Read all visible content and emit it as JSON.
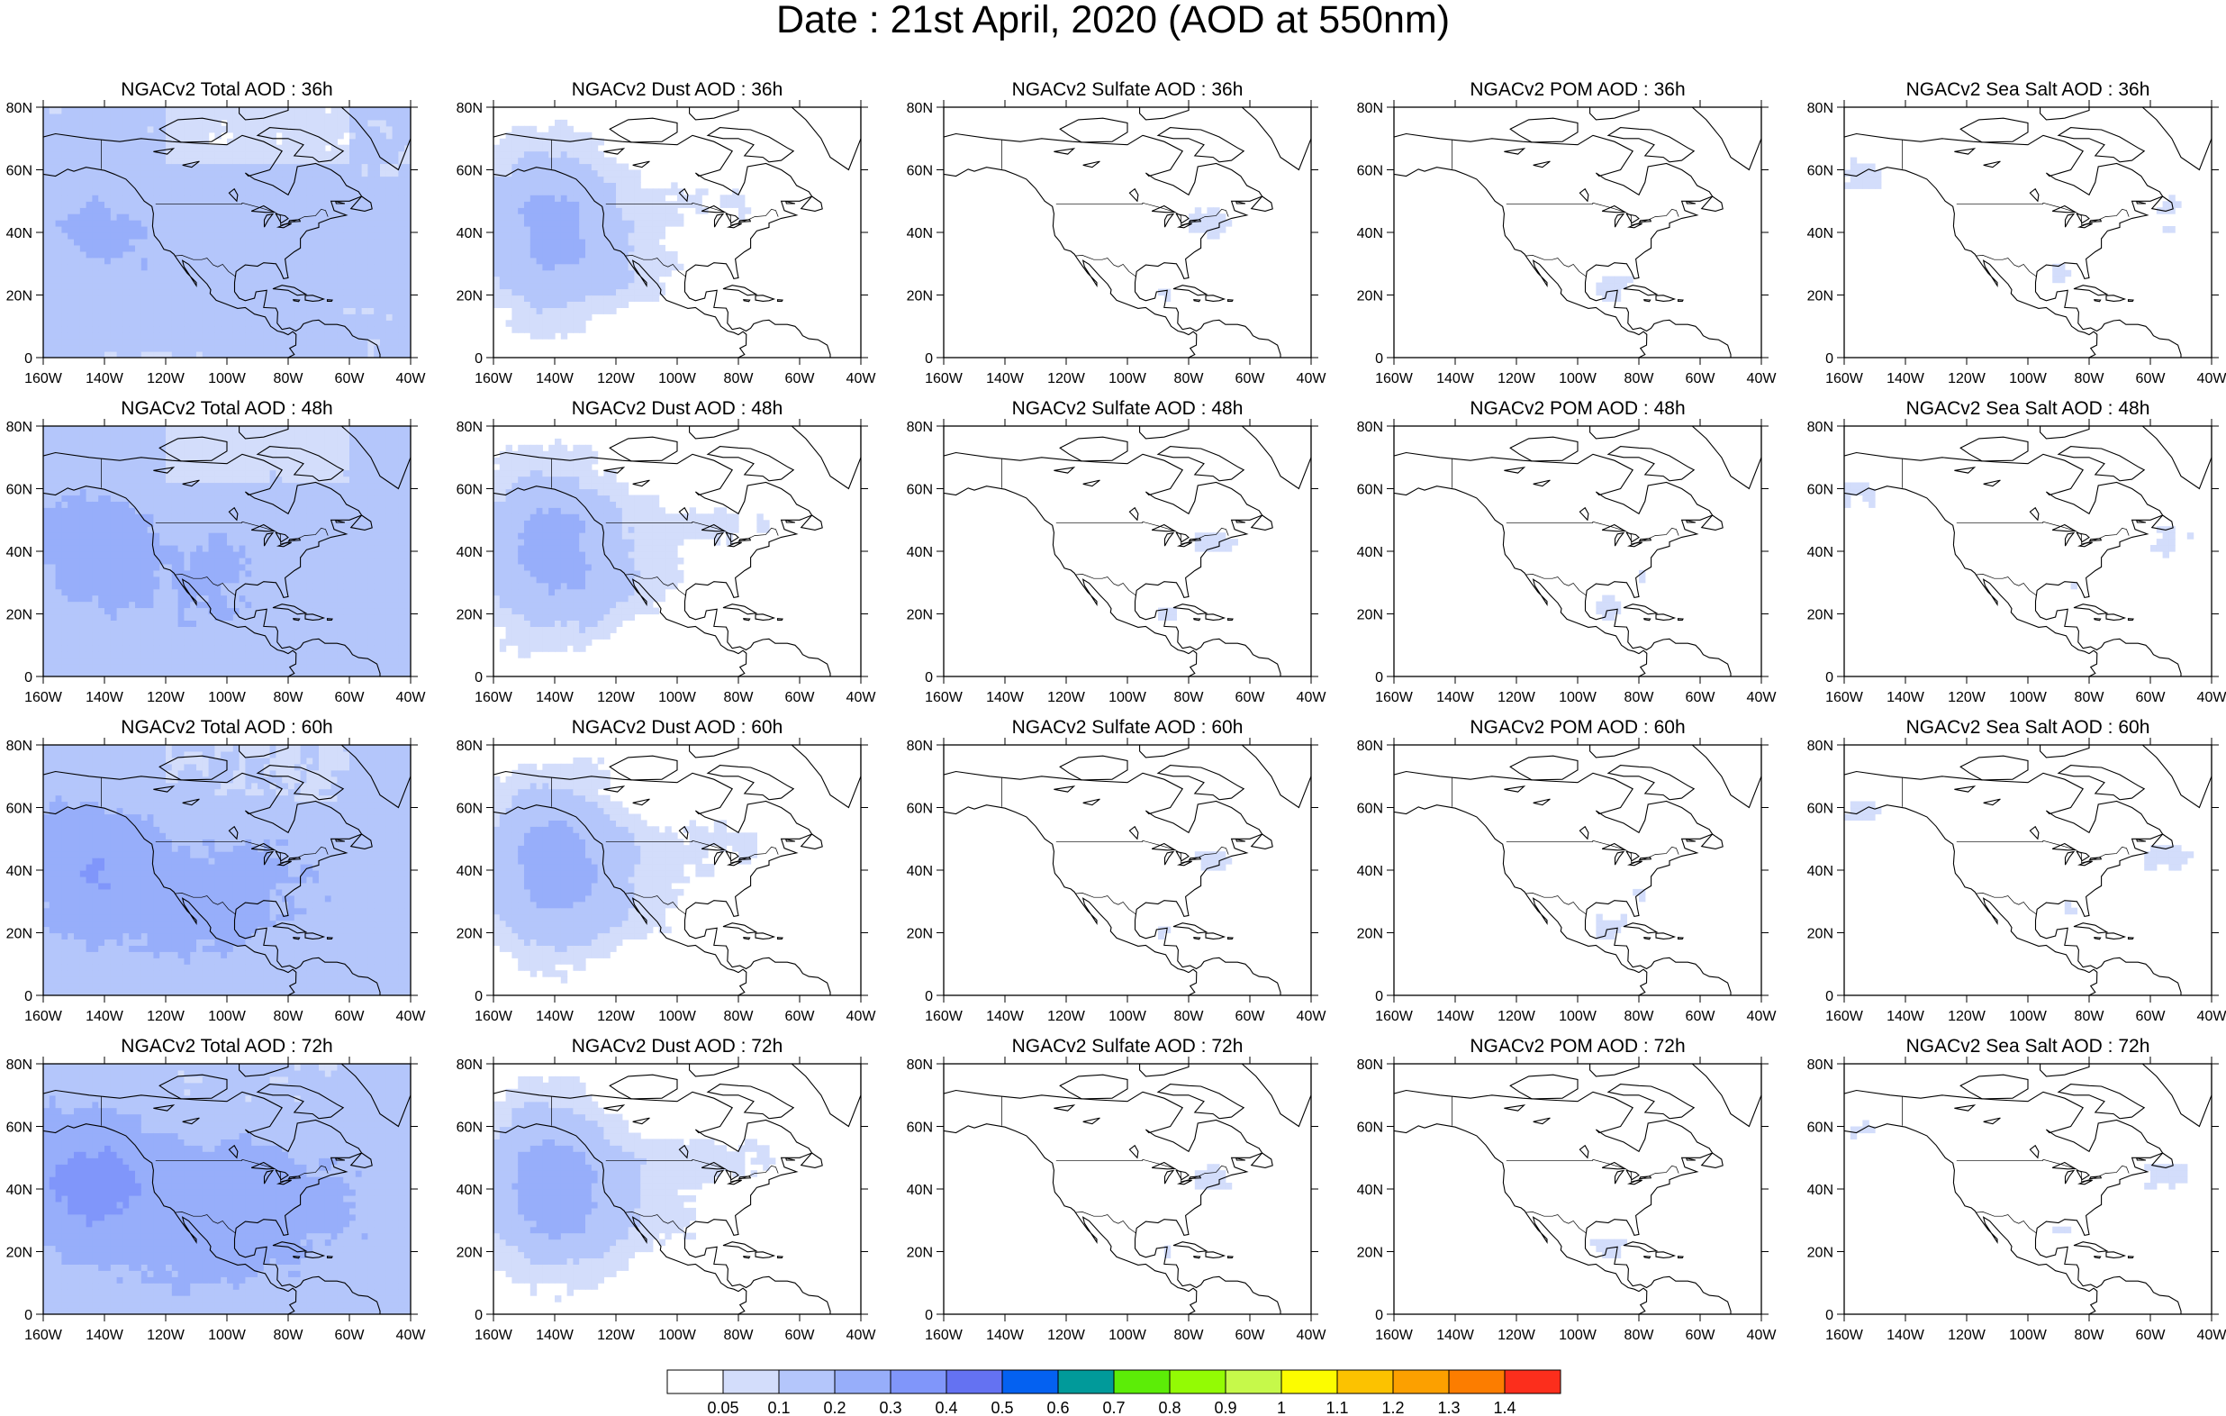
{
  "title": "Date : 21st April, 2020 (AOD at 550nm)",
  "map": {
    "x_ticks": [
      "160W",
      "140W",
      "120W",
      "100W",
      "80W",
      "60W",
      "40W"
    ],
    "y_ticks": [
      "80N",
      "60N",
      "40N",
      "20N",
      "0"
    ],
    "lon_range": [
      -160,
      -40
    ],
    "lat_range": [
      0,
      80
    ]
  },
  "panels": [
    {
      "title": "NGACv2 Total AOD : 36h",
      "field": "total",
      "level": 0.55
    },
    {
      "title": "NGACv2 Dust AOD : 36h",
      "field": "dust",
      "level": 0.5
    },
    {
      "title": "NGACv2 Sulfate AOD : 36h",
      "field": "sulfate",
      "level": 0.35
    },
    {
      "title": "NGACv2 POM AOD : 36h",
      "field": "pom",
      "level": 0.25
    },
    {
      "title": "NGACv2 Sea Salt AOD : 36h",
      "field": "seasalt",
      "level": 0.35
    },
    {
      "title": "NGACv2 Total AOD : 48h",
      "field": "total",
      "level": 0.65
    },
    {
      "title": "NGACv2 Dust AOD : 48h",
      "field": "dust",
      "level": 0.55
    },
    {
      "title": "NGACv2 Sulfate AOD : 48h",
      "field": "sulfate",
      "level": 0.3
    },
    {
      "title": "NGACv2 POM AOD : 48h",
      "field": "pom",
      "level": 0.35
    },
    {
      "title": "NGACv2 Sea Salt AOD : 48h",
      "field": "seasalt",
      "level": 0.4
    },
    {
      "title": "NGACv2 Total AOD : 60h",
      "field": "total",
      "level": 0.75
    },
    {
      "title": "NGACv2 Dust AOD : 60h",
      "field": "dust",
      "level": 0.6
    },
    {
      "title": "NGACv2 Sulfate AOD : 60h",
      "field": "sulfate",
      "level": 0.4
    },
    {
      "title": "NGACv2 POM AOD : 60h",
      "field": "pom",
      "level": 0.4
    },
    {
      "title": "NGACv2 Sea Salt AOD : 60h",
      "field": "seasalt",
      "level": 0.5
    },
    {
      "title": "NGACv2 Total AOD : 72h",
      "field": "total",
      "level": 0.85
    },
    {
      "title": "NGACv2 Dust AOD : 72h",
      "field": "dust",
      "level": 0.65
    },
    {
      "title": "NGACv2 Sulfate AOD : 72h",
      "field": "sulfate",
      "level": 0.45
    },
    {
      "title": "NGACv2 POM AOD : 72h",
      "field": "pom",
      "level": 0.4
    },
    {
      "title": "NGACv2 Sea Salt  AOD : 72h",
      "field": "seasalt",
      "level": 0.55
    }
  ],
  "colorbar": {
    "colors": [
      "#ffffff",
      "#d3ddfb",
      "#b4c6fb",
      "#97aefa",
      "#8096fa",
      "#6472f2",
      "#0461f1",
      "#019a9a",
      "#5ced07",
      "#93fb04",
      "#c6f94a",
      "#fcfc00",
      "#fcc200",
      "#fca000",
      "#fc7d00",
      "#fc2e1c"
    ],
    "labels": [
      "0.05",
      "0.1",
      "0.2",
      "0.3",
      "0.4",
      "0.5",
      "0.6",
      "0.7",
      "0.8",
      "0.9",
      "1",
      "1.1",
      "1.2",
      "1.3",
      "1.4"
    ]
  }
}
